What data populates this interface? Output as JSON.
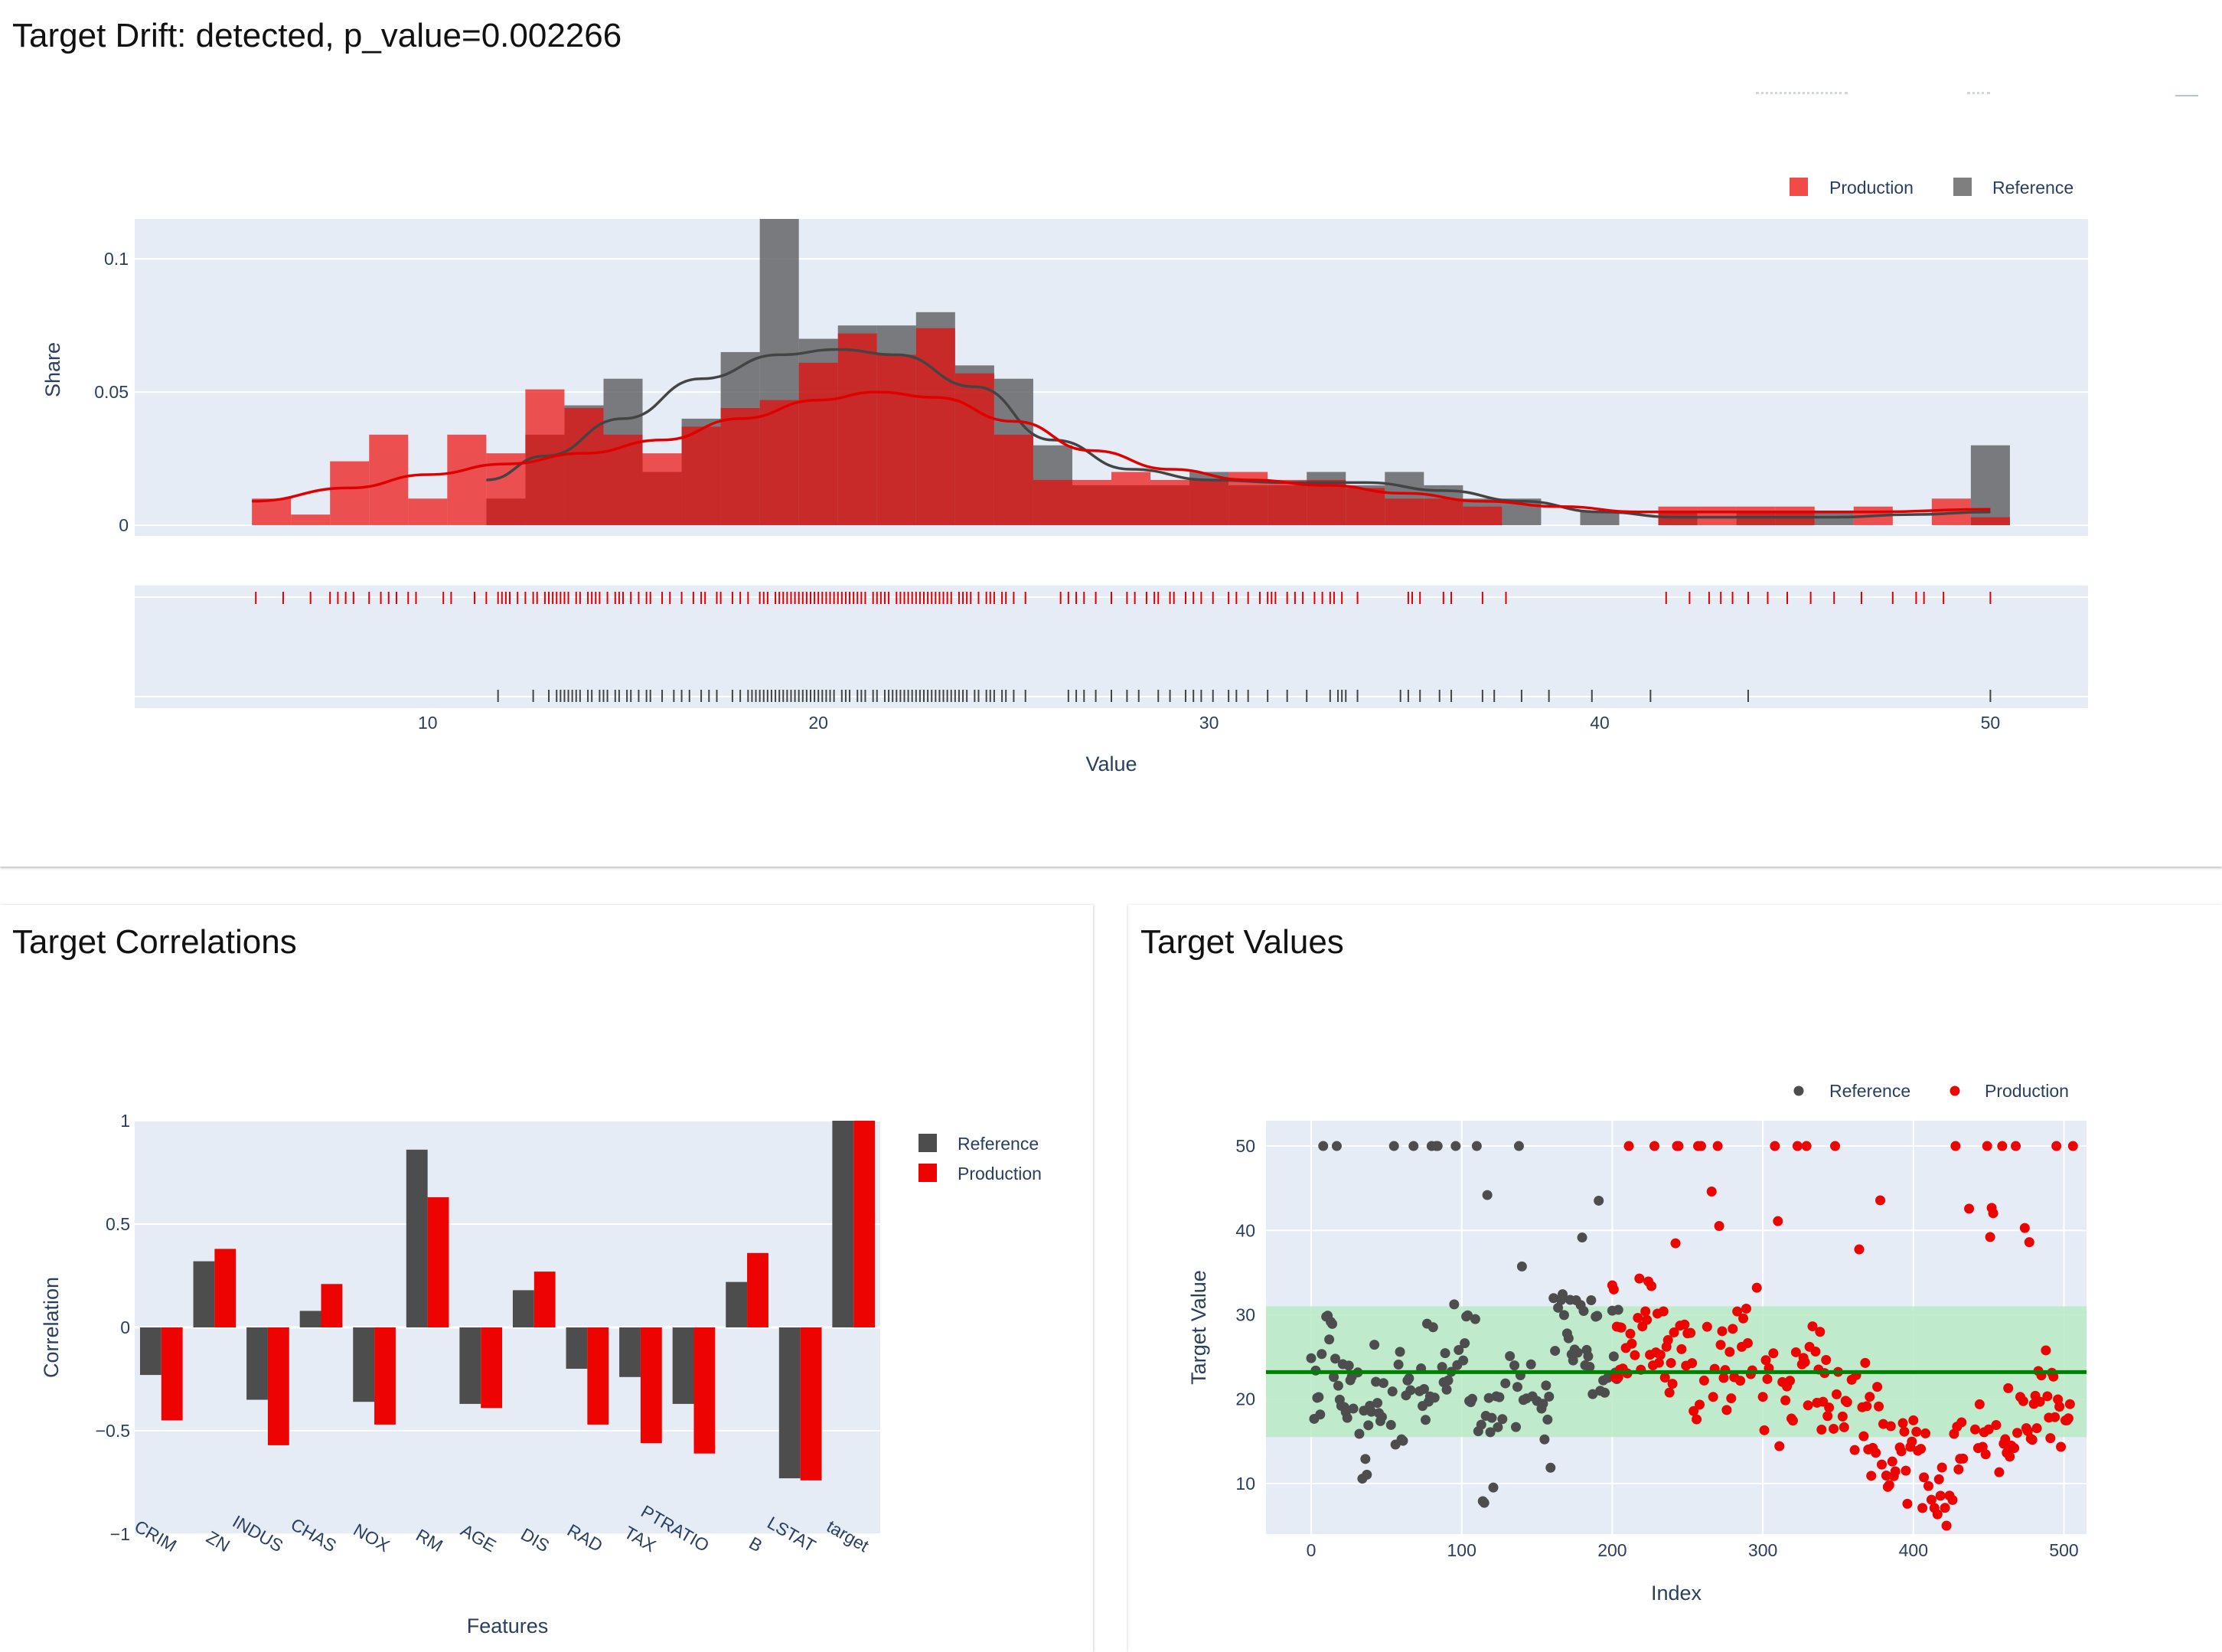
{
  "panels": {
    "drift_title": "Target Drift: detected, p_value=0.002266",
    "correlations_title": "Target Correlations",
    "values_title": "Target Values"
  },
  "colors": {
    "reference": "#4d4d4d",
    "production": "#ed0400",
    "plot_bg": "#e5ecf6",
    "band": "#b8eac4",
    "mean_line": "#008000"
  },
  "chart_data": [
    {
      "type": "bar",
      "name": "target-distribution",
      "xlabel": "Value",
      "ylabel": "Share",
      "xlim": [
        2.5,
        52.5
      ],
      "ylim": [
        -0.004,
        0.115
      ],
      "xticks": [
        10,
        20,
        30,
        40,
        50
      ],
      "yticks": [
        0,
        0.05,
        0.1
      ],
      "ytick_labels": [
        "0",
        "0.05",
        "0.1"
      ],
      "legend": [
        "Production",
        "Reference"
      ],
      "legend_position": "top-right",
      "series": [
        {
          "name": "Production",
          "bins": [
            [
              5.5,
              6.5,
              0.01
            ],
            [
              6.5,
              7.5,
              0.004
            ],
            [
              7.5,
              8.5,
              0.024
            ],
            [
              8.5,
              9.5,
              0.034
            ],
            [
              9.5,
              10.5,
              0.01
            ],
            [
              10.5,
              11.5,
              0.034
            ],
            [
              11.5,
              12.5,
              0.027
            ],
            [
              12.5,
              13.5,
              0.051
            ],
            [
              13.5,
              14.5,
              0.044
            ],
            [
              14.5,
              15.5,
              0.034
            ],
            [
              15.5,
              16.5,
              0.027
            ],
            [
              16.5,
              17.5,
              0.037
            ],
            [
              17.5,
              18.5,
              0.044
            ],
            [
              18.5,
              19.5,
              0.047
            ],
            [
              19.5,
              20.5,
              0.061
            ],
            [
              20.5,
              21.5,
              0.072
            ],
            [
              21.5,
              22.5,
              0.064
            ],
            [
              22.5,
              23.5,
              0.074
            ],
            [
              23.5,
              24.5,
              0.057
            ],
            [
              24.5,
              25.5,
              0.034
            ],
            [
              25.5,
              26.5,
              0.017
            ],
            [
              26.5,
              27.5,
              0.017
            ],
            [
              27.5,
              28.5,
              0.02
            ],
            [
              28.5,
              29.5,
              0.017
            ],
            [
              29.5,
              30.5,
              0.017
            ],
            [
              30.5,
              31.5,
              0.02
            ],
            [
              31.5,
              32.5,
              0.017
            ],
            [
              32.5,
              33.5,
              0.017
            ],
            [
              33.5,
              34.5,
              0.014
            ],
            [
              34.5,
              35.5,
              0.01
            ],
            [
              35.5,
              36.5,
              0.01
            ],
            [
              36.5,
              37.5,
              0.007
            ],
            [
              41.5,
              42.5,
              0.007
            ],
            [
              42.5,
              43.5,
              0.007
            ],
            [
              43.5,
              44.5,
              0.007
            ],
            [
              44.5,
              45.5,
              0.007
            ],
            [
              46.5,
              47.5,
              0.007
            ],
            [
              48.5,
              49.5,
              0.01
            ],
            [
              49.5,
              50.5,
              0.003
            ]
          ],
          "kde": [
            [
              5.5,
              0.009
            ],
            [
              8,
              0.014
            ],
            [
              10,
              0.019
            ],
            [
              12,
              0.023
            ],
            [
              14,
              0.027
            ],
            [
              16,
              0.032
            ],
            [
              18,
              0.04
            ],
            [
              20,
              0.047
            ],
            [
              21.5,
              0.05
            ],
            [
              23,
              0.048
            ],
            [
              25,
              0.039
            ],
            [
              27,
              0.028
            ],
            [
              29,
              0.021
            ],
            [
              31,
              0.017
            ],
            [
              33,
              0.015
            ],
            [
              35,
              0.012
            ],
            [
              37,
              0.009
            ],
            [
              39,
              0.007
            ],
            [
              41,
              0.005
            ],
            [
              43,
              0.005
            ],
            [
              45,
              0.005
            ],
            [
              47,
              0.005
            ],
            [
              50,
              0.006
            ]
          ]
        },
        {
          "name": "Reference",
          "bins": [
            [
              11.5,
              12.5,
              0.01
            ],
            [
              12.5,
              13.5,
              0.034
            ],
            [
              13.5,
              14.5,
              0.045
            ],
            [
              14.5,
              15.5,
              0.055
            ],
            [
              15.5,
              16.5,
              0.02
            ],
            [
              16.5,
              17.5,
              0.04
            ],
            [
              17.5,
              18.5,
              0.065
            ],
            [
              18.5,
              19.5,
              0.115
            ],
            [
              19.5,
              20.5,
              0.07
            ],
            [
              20.5,
              21.5,
              0.075
            ],
            [
              21.5,
              22.5,
              0.075
            ],
            [
              22.5,
              23.5,
              0.08
            ],
            [
              23.5,
              24.5,
              0.06
            ],
            [
              24.5,
              25.5,
              0.055
            ],
            [
              25.5,
              26.5,
              0.03
            ],
            [
              26.5,
              27.5,
              0.015
            ],
            [
              27.5,
              28.5,
              0.015
            ],
            [
              28.5,
              29.5,
              0.015
            ],
            [
              29.5,
              30.5,
              0.02
            ],
            [
              30.5,
              31.5,
              0.015
            ],
            [
              31.5,
              32.5,
              0.015
            ],
            [
              32.5,
              33.5,
              0.02
            ],
            [
              33.5,
              34.5,
              0.015
            ],
            [
              34.5,
              35.5,
              0.02
            ],
            [
              35.5,
              36.5,
              0.015
            ],
            [
              36.5,
              37.5,
              0.01
            ],
            [
              37.5,
              38.5,
              0.01
            ],
            [
              39.5,
              40.5,
              0.005
            ],
            [
              41.5,
              42.5,
              0.005
            ],
            [
              43.5,
              44.5,
              0.005
            ],
            [
              44.5,
              45.5,
              0.005
            ],
            [
              45.5,
              46.5,
              0.005
            ],
            [
              49.5,
              50.5,
              0.03
            ]
          ],
          "kde": [
            [
              11.5,
              0.017
            ],
            [
              13,
              0.026
            ],
            [
              15,
              0.04
            ],
            [
              17,
              0.055
            ],
            [
              19,
              0.064
            ],
            [
              20.5,
              0.066
            ],
            [
              22,
              0.064
            ],
            [
              24,
              0.052
            ],
            [
              26,
              0.032
            ],
            [
              28,
              0.021
            ],
            [
              30,
              0.017
            ],
            [
              32,
              0.016
            ],
            [
              34,
              0.016
            ],
            [
              36,
              0.013
            ],
            [
              38,
              0.009
            ],
            [
              40,
              0.005
            ],
            [
              42,
              0.003
            ],
            [
              44,
              0.003
            ],
            [
              46,
              0.003
            ],
            [
              48,
              0.004
            ],
            [
              50,
              0.005
            ]
          ]
        }
      ],
      "rug": {
        "production": [
          5.6,
          6.3,
          7.0,
          7.5,
          7.7,
          7.9,
          8.1,
          8.5,
          8.8,
          9.0,
          9.2,
          9.5,
          9.7,
          10.4,
          10.6,
          11.2,
          11.5,
          11.8,
          11.9,
          12.0,
          12.1,
          12.3,
          12.5,
          12.7,
          12.8,
          13.0,
          13.1,
          13.2,
          13.3,
          13.4,
          13.5,
          13.6,
          13.8,
          13.9,
          14.1,
          14.2,
          14.3,
          14.4,
          14.6,
          14.8,
          14.9,
          15.0,
          15.2,
          15.4,
          15.6,
          15.7,
          16.0,
          16.2,
          16.5,
          16.8,
          17.0,
          17.1,
          17.4,
          17.5,
          17.8,
          18.0,
          18.2,
          18.5,
          18.6,
          18.7,
          18.9,
          19.0,
          19.1,
          19.2,
          19.3,
          19.4,
          19.5,
          19.6,
          19.7,
          19.8,
          19.9,
          20.0,
          20.1,
          20.2,
          20.3,
          20.4,
          20.5,
          20.6,
          20.7,
          20.8,
          20.9,
          21.0,
          21.1,
          21.2,
          21.4,
          21.5,
          21.6,
          21.7,
          21.8,
          22.0,
          22.1,
          22.2,
          22.3,
          22.4,
          22.5,
          22.6,
          22.7,
          22.8,
          22.9,
          23.0,
          23.1,
          23.2,
          23.3,
          23.4,
          23.6,
          23.7,
          23.8,
          23.9,
          24.1,
          24.3,
          24.4,
          24.5,
          24.7,
          24.8,
          25.0,
          25.3,
          26.2,
          26.4,
          26.6,
          26.8,
          27.1,
          27.5,
          27.9,
          28.1,
          28.4,
          28.6,
          28.7,
          29.0,
          29.1,
          29.4,
          29.6,
          29.8,
          30.1,
          30.5,
          30.7,
          31.0,
          31.3,
          31.5,
          31.6,
          31.7,
          32.0,
          32.2,
          32.4,
          32.7,
          32.9,
          33.1,
          33.2,
          33.4,
          33.8,
          35.1,
          35.2,
          35.4,
          36.0,
          36.2,
          37.0,
          37.6,
          41.7,
          42.3,
          42.8,
          43.1,
          43.4,
          43.8,
          44.3,
          44.8,
          45.4,
          46.0,
          46.7,
          47.5,
          48.1,
          48.3,
          48.8,
          50.0
        ],
        "reference": [
          11.8,
          12.7,
          13.1,
          13.3,
          13.4,
          13.5,
          13.6,
          13.7,
          13.8,
          13.9,
          14.1,
          14.2,
          14.4,
          14.5,
          14.6,
          14.8,
          14.9,
          15.1,
          15.2,
          15.4,
          15.6,
          15.7,
          16.0,
          16.3,
          16.5,
          16.7,
          17.0,
          17.2,
          17.4,
          17.8,
          18.0,
          18.2,
          18.3,
          18.4,
          18.5,
          18.6,
          18.7,
          18.8,
          18.9,
          19.0,
          19.1,
          19.2,
          19.3,
          19.4,
          19.5,
          19.6,
          19.7,
          19.8,
          19.9,
          20.0,
          20.1,
          20.2,
          20.3,
          20.4,
          20.6,
          20.7,
          20.8,
          21.0,
          21.1,
          21.2,
          21.4,
          21.5,
          21.7,
          21.8,
          21.9,
          22.0,
          22.1,
          22.2,
          22.3,
          22.4,
          22.5,
          22.6,
          22.7,
          22.8,
          22.9,
          23.0,
          23.1,
          23.2,
          23.3,
          23.4,
          23.5,
          23.6,
          23.7,
          23.8,
          24.0,
          24.1,
          24.3,
          24.4,
          24.5,
          24.7,
          24.8,
          25.0,
          25.3,
          26.4,
          26.6,
          26.8,
          27.1,
          27.5,
          27.9,
          28.2,
          28.7,
          29.0,
          29.4,
          29.6,
          29.8,
          30.1,
          30.5,
          30.7,
          31.0,
          31.5,
          32.0,
          32.5,
          33.1,
          33.3,
          33.4,
          33.5,
          33.8,
          34.9,
          35.1,
          35.4,
          35.9,
          36.2,
          37.0,
          37.3,
          38.0,
          38.7,
          39.8,
          41.3,
          43.8,
          50.0
        ]
      }
    },
    {
      "type": "bar",
      "name": "target-correlations",
      "xlabel": "Features",
      "ylabel": "Correlation",
      "ylim": [
        -1,
        1
      ],
      "yticks": [
        -1,
        -0.5,
        0,
        0.5,
        1
      ],
      "ytick_labels": [
        "−1",
        "−0.5",
        "0",
        "0.5",
        "1"
      ],
      "legend_position": "right",
      "categories": [
        "CRIM",
        "ZN",
        "INDUS",
        "CHAS",
        "NOX",
        "RM",
        "AGE",
        "DIS",
        "RAD",
        "TAX",
        "PTRATIO",
        "B",
        "LSTAT",
        "target"
      ],
      "series": [
        {
          "name": "Reference",
          "values": [
            -0.23,
            0.32,
            -0.35,
            0.08,
            -0.36,
            0.86,
            -0.37,
            0.18,
            -0.2,
            -0.24,
            -0.37,
            0.22,
            -0.73,
            1.0
          ]
        },
        {
          "name": "Production",
          "values": [
            -0.45,
            0.38,
            -0.57,
            0.21,
            -0.47,
            0.63,
            -0.39,
            0.27,
            -0.47,
            -0.56,
            -0.61,
            0.36,
            -0.74,
            1.0
          ]
        }
      ]
    },
    {
      "type": "scatter",
      "name": "target-values",
      "xlabel": "Index",
      "ylabel": "Target Value",
      "xlim": [
        -30,
        515
      ],
      "ylim": [
        4,
        53
      ],
      "xticks": [
        0,
        100,
        200,
        300,
        400,
        500
      ],
      "yticks": [
        10,
        20,
        30,
        40,
        50
      ],
      "legend_position": "top-right",
      "mean": 23.2,
      "band": [
        15.5,
        31.0
      ],
      "series": [
        {
          "name": "Reference",
          "seed": 11,
          "x_range": [
            0,
            205
          ],
          "center": 22.5
        },
        {
          "name": "Production",
          "seed": 29,
          "x_range": [
            200,
            506
          ],
          "center": 20.5
        }
      ]
    }
  ]
}
